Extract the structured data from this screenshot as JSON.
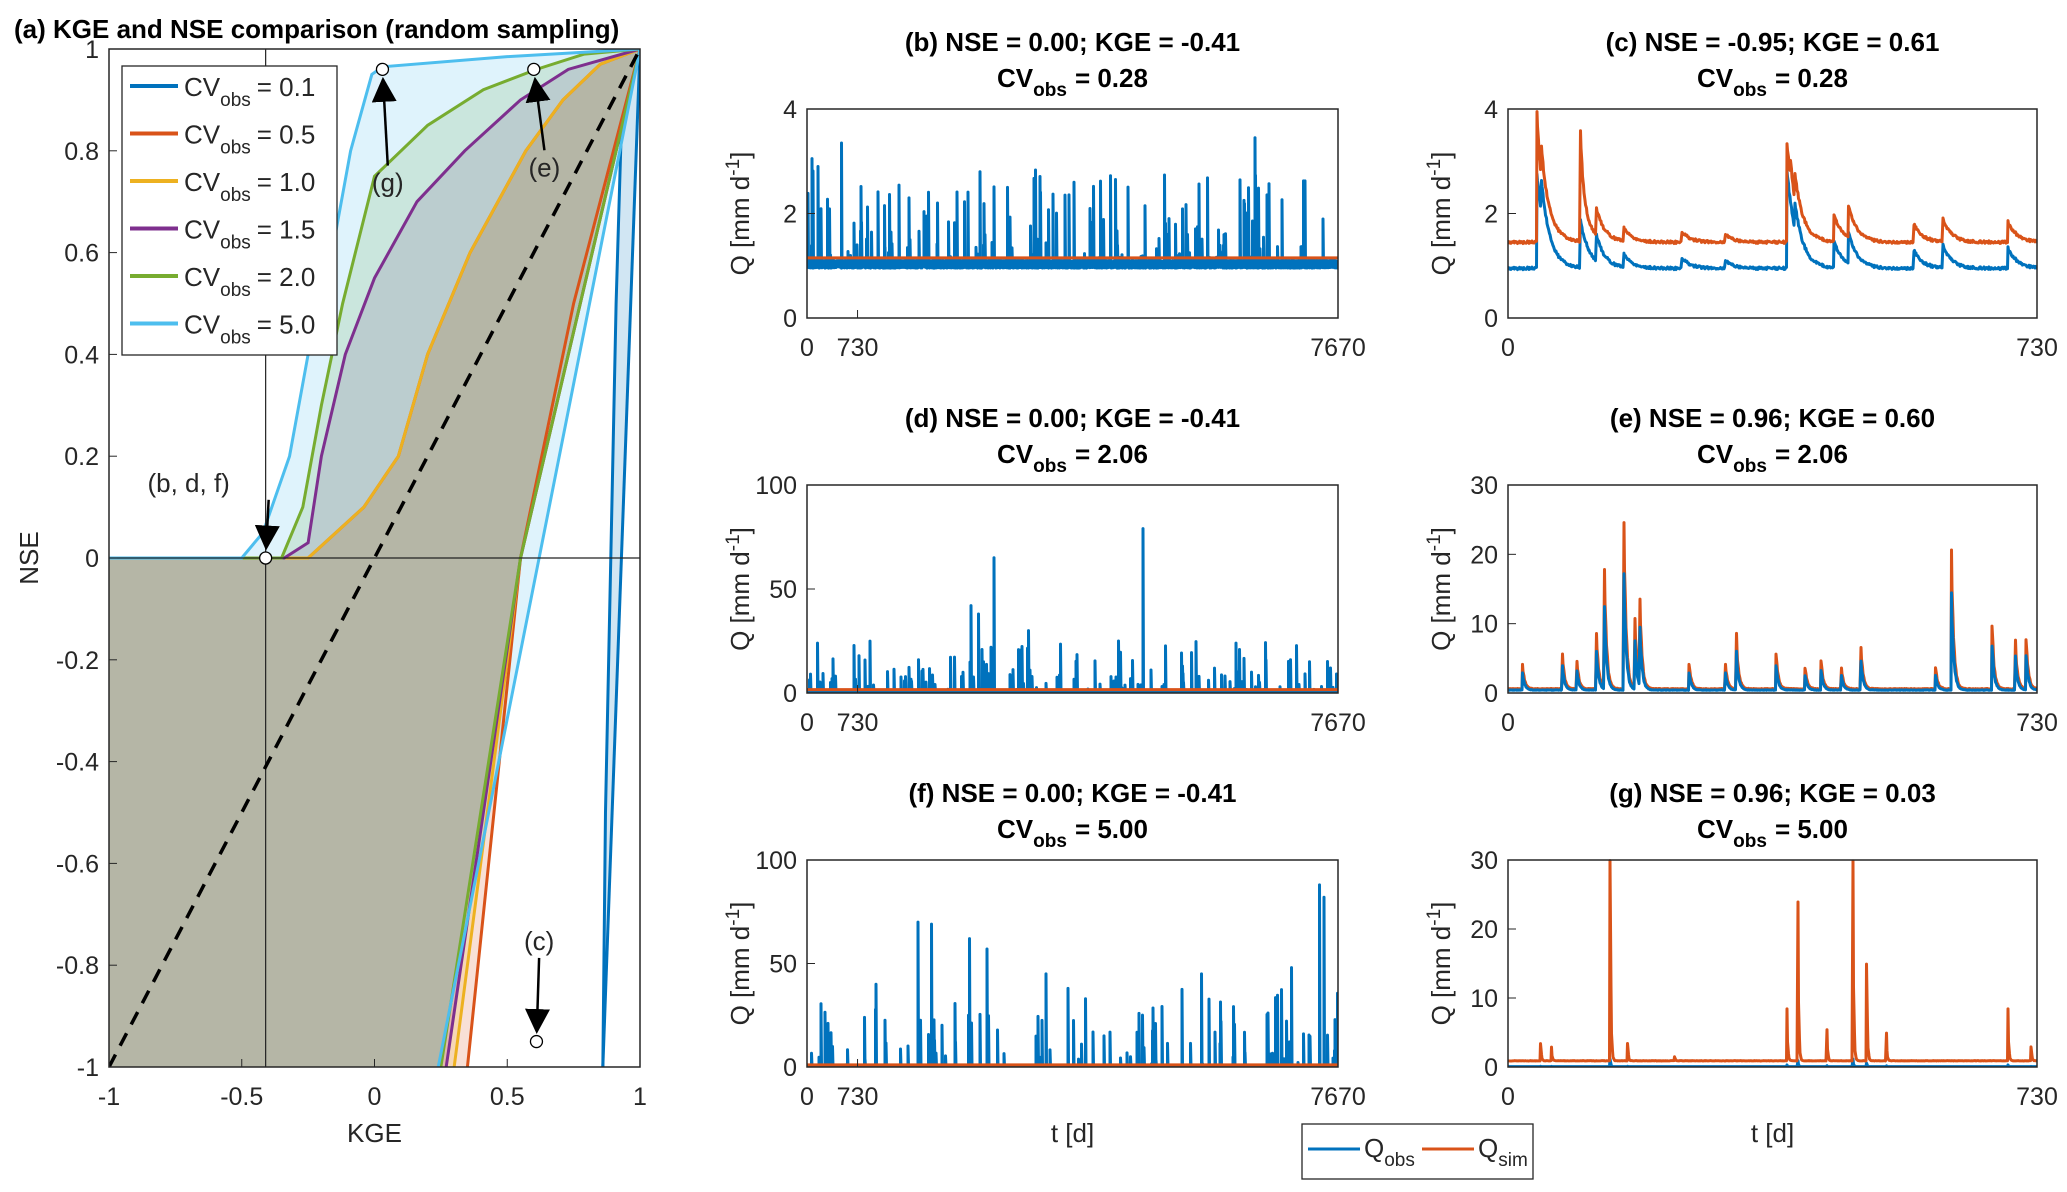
{
  "colors": {
    "blue": "#0072BD",
    "orange": "#D95319",
    "yellow": "#EDB120",
    "purple": "#7E2F8E",
    "green": "#77AC30",
    "lightblue": "#4DBEEE"
  },
  "legend_bottom": {
    "items": [
      {
        "base": "Q",
        "sub": "obs",
        "color": "#0072BD"
      },
      {
        "base": "Q",
        "sub": "sim",
        "color": "#D95319"
      }
    ]
  },
  "chart_data": [
    {
      "id": "a",
      "type": "line",
      "title": "(a) KGE and NSE comparison (random sampling)",
      "xlabel": "KGE",
      "ylabel": "NSE",
      "xlim": [
        -1,
        1
      ],
      "ylim": [
        -1,
        1
      ],
      "xticks": [
        -1,
        -0.5,
        0,
        0.5,
        1
      ],
      "xtick_labels": [
        "-1",
        "-0.5",
        "0",
        "0.5",
        "1"
      ],
      "yticks": [
        -1,
        -0.8,
        -0.6,
        -0.4,
        -0.2,
        0,
        0.2,
        0.4,
        0.6,
        0.8,
        1
      ],
      "ytick_labels": [
        "-1",
        "-0.8",
        "-0.6",
        "-0.4",
        "-0.2",
        "0",
        "0.2",
        "0.4",
        "0.6",
        "0.8",
        "1"
      ],
      "legend": {
        "placement": "top-left",
        "entries": [
          {
            "base": "CV",
            "sub": "obs",
            "value": "= 0.1",
            "color": "#0072BD"
          },
          {
            "base": "CV",
            "sub": "obs",
            "value": "= 0.5",
            "color": "#D95319"
          },
          {
            "base": "CV",
            "sub": "obs",
            "value": "= 1.0",
            "color": "#EDB120"
          },
          {
            "base": "CV",
            "sub": "obs",
            "value": "= 1.5",
            "color": "#7E2F8E"
          },
          {
            "base": "CV",
            "sub": "obs",
            "value": "= 2.0",
            "color": "#77AC30"
          },
          {
            "base": "CV",
            "sub": "obs",
            "value": "= 5.0",
            "color": "#4DBEEE"
          }
        ]
      },
      "series": [
        {
          "cv": 0.1,
          "color": "#0072BD",
          "upper": [
            [
              0.86,
              -1
            ],
            [
              0.87,
              -0.5
            ],
            [
              0.89,
              0
            ],
            [
              0.91,
              0.5
            ],
            [
              0.93,
              0.85
            ],
            [
              1,
              1
            ]
          ],
          "lower": [
            [
              0.86,
              -1
            ],
            [
              1,
              1
            ]
          ]
        },
        {
          "cv": 0.5,
          "color": "#D95319",
          "upper": [
            [
              -1,
              0
            ],
            [
              -0.25,
              0
            ],
            [
              -0.04,
              0.1
            ],
            [
              0.09,
              0.2
            ],
            [
              0.2,
              0.4
            ],
            [
              0.36,
              0.6
            ],
            [
              0.57,
              0.8
            ],
            [
              0.71,
              0.9
            ],
            [
              0.85,
              0.97
            ],
            [
              1,
              1
            ]
          ],
          "lower": [
            [
              0.35,
              -1
            ],
            [
              0.45,
              -0.5
            ],
            [
              0.55,
              0
            ],
            [
              0.75,
              0.5
            ],
            [
              1,
              1
            ]
          ]
        },
        {
          "cv": 1.0,
          "color": "#EDB120",
          "upper": [
            [
              -1,
              0
            ],
            [
              -0.25,
              0
            ],
            [
              -0.04,
              0.1
            ],
            [
              0.09,
              0.2
            ],
            [
              0.2,
              0.4
            ],
            [
              0.36,
              0.6
            ],
            [
              0.57,
              0.8
            ],
            [
              0.71,
              0.9
            ],
            [
              0.85,
              0.97
            ],
            [
              1,
              1
            ]
          ],
          "lower": [
            [
              0.3,
              -1
            ],
            [
              0.55,
              0
            ],
            [
              1,
              1
            ]
          ]
        },
        {
          "cv": 1.5,
          "color": "#7E2F8E",
          "upper": [
            [
              -1,
              0
            ],
            [
              -0.34,
              0
            ],
            [
              -0.25,
              0.03
            ],
            [
              -0.2,
              0.2
            ],
            [
              -0.11,
              0.4
            ],
            [
              0,
              0.55
            ],
            [
              0.16,
              0.7
            ],
            [
              0.34,
              0.8
            ],
            [
              0.55,
              0.9
            ],
            [
              0.73,
              0.96
            ],
            [
              1,
              1
            ]
          ],
          "lower": [
            [
              0.27,
              -1
            ],
            [
              0.55,
              0
            ],
            [
              1,
              1
            ]
          ]
        },
        {
          "cv": 2.0,
          "color": "#77AC30",
          "upper": [
            [
              -1,
              0
            ],
            [
              -0.35,
              0
            ],
            [
              -0.27,
              0.1
            ],
            [
              -0.2,
              0.3
            ],
            [
              -0.12,
              0.5
            ],
            [
              0,
              0.75
            ],
            [
              0.2,
              0.85
            ],
            [
              0.41,
              0.92
            ],
            [
              0.61,
              0.96
            ],
            [
              0.79,
              0.99
            ],
            [
              1,
              1
            ]
          ],
          "lower": [
            [
              0.25,
              -1
            ],
            [
              0.55,
              0
            ],
            [
              1,
              1
            ]
          ]
        },
        {
          "cv": 5.0,
          "color": "#4DBEEE",
          "upper": [
            [
              -1,
              0
            ],
            [
              -0.5,
              0
            ],
            [
              -0.42,
              0.05
            ],
            [
              -0.32,
              0.2
            ],
            [
              -0.25,
              0.4
            ],
            [
              -0.16,
              0.6
            ],
            [
              -0.09,
              0.8
            ],
            [
              -0.01,
              0.95
            ],
            [
              0.03,
              0.965
            ],
            [
              0.5,
              0.985
            ],
            [
              1,
              1
            ]
          ],
          "lower": [
            [
              0.24,
              -1
            ],
            [
              0.62,
              0
            ],
            [
              1,
              1
            ]
          ]
        }
      ],
      "reference_line": {
        "label": "1:1",
        "points": [
          [
            -1,
            -1
          ],
          [
            1,
            1
          ]
        ]
      },
      "markers": [
        {
          "kge": -0.41,
          "nse": 0.0,
          "label": "(b, d, f)",
          "tx": -0.7,
          "ty": 0.13
        },
        {
          "kge": 0.03,
          "nse": 0.96,
          "label": "(g)",
          "tx": 0.05,
          "ty": 0.72
        },
        {
          "kge": 0.6,
          "nse": 0.96,
          "label": "(e)",
          "tx": 0.64,
          "ty": 0.75
        },
        {
          "kge": 0.61,
          "nse": -0.95,
          "label": "(c)",
          "tx": 0.62,
          "ty": -0.77
        }
      ]
    },
    {
      "id": "b",
      "type": "line",
      "title": "(b) NSE = 0.00; KGE = -0.41",
      "cv_value": "= 0.28",
      "xlim": [
        0,
        7670
      ],
      "xticks": [
        0,
        730,
        7670
      ],
      "ylim": [
        0,
        4
      ],
      "yticks": [
        0,
        2,
        4
      ],
      "ylabel": "Q [mm d",
      "ylabel_sup": "-1",
      "ylabel_end": "]",
      "xlabel": "",
      "obs": {
        "kind": "random",
        "n": 7670,
        "base": 1.0,
        "noise": 0.15,
        "spike_prob": 0.03,
        "spike_max": 1.8,
        "seed": 3,
        "peaks": [
          [
            70,
            3.05
          ],
          [
            160,
            2.9
          ],
          [
            500,
            3.35
          ],
          [
            6470,
            3.45
          ],
          [
            2500,
            2.8
          ]
        ]
      },
      "sim": {
        "kind": "const",
        "value": 1.15
      }
    },
    {
      "id": "c",
      "type": "line",
      "title": "(c) NSE = -0.95; KGE = 0.61",
      "cv_value": "= 0.28",
      "xlim": [
        0,
        730
      ],
      "xticks": [
        0,
        730
      ],
      "ylim": [
        0,
        4
      ],
      "yticks": [
        0,
        2,
        4
      ],
      "ylabel": "Q [mm d",
      "ylabel_sup": "-1",
      "ylabel_end": "]",
      "xlabel": "",
      "obs": {
        "kind": "events",
        "base": 0.95,
        "noise": 0.05,
        "tau": 12,
        "seed": 5,
        "events": [
          [
            40,
            1.8
          ],
          [
            46,
            0.6
          ],
          [
            100,
            0.9
          ],
          [
            122,
            0.5
          ],
          [
            160,
            0.25
          ],
          [
            240,
            0.2
          ],
          [
            300,
            0.15
          ],
          [
            385,
            1.9
          ],
          [
            396,
            0.5
          ],
          [
            450,
            0.5
          ],
          [
            470,
            0.6
          ],
          [
            560,
            0.35
          ],
          [
            600,
            0.45
          ],
          [
            690,
            0.4
          ]
        ]
      },
      "sim": {
        "kind": "transform",
        "scale": 1.0,
        "offset": 0.5,
        "extra": [
          [
            40,
            0.7
          ],
          [
            100,
            1.2
          ],
          [
            390,
            0.3
          ]
        ]
      }
    },
    {
      "id": "d",
      "type": "line",
      "title": "(d) NSE = 0.00; KGE = -0.41",
      "cv_value": "= 2.06",
      "xlim": [
        0,
        7670
      ],
      "xticks": [
        0,
        730,
        7670
      ],
      "ylim": [
        0,
        100
      ],
      "yticks": [
        0,
        50,
        100
      ],
      "ylabel": "Q [mm d",
      "ylabel_sup": "-1",
      "ylabel_end": "]",
      "xlabel": "",
      "obs": {
        "kind": "random",
        "n": 7670,
        "base": 0.3,
        "noise": 0.3,
        "spike_prob": 0.02,
        "spike_max": 25,
        "seed": 7,
        "peaks": [
          [
            2700,
            65
          ],
          [
            4850,
            79
          ],
          [
            2370,
            42
          ],
          [
            2480,
            38
          ],
          [
            3200,
            30
          ],
          [
            4500,
            25
          ],
          [
            6200,
            24
          ],
          [
            150,
            24
          ]
        ]
      },
      "sim": {
        "kind": "const",
        "value": 1.6
      }
    },
    {
      "id": "e",
      "type": "line",
      "title": "(e) NSE = 0.96; KGE = 0.60",
      "cv_value": "= 2.06",
      "xlim": [
        0,
        730
      ],
      "xticks": [
        0,
        730
      ],
      "ylim": [
        0,
        30
      ],
      "yticks": [
        0,
        10,
        20,
        30
      ],
      "ylabel": "Q [mm d",
      "ylabel_sup": "-1",
      "ylabel_end": "]",
      "xlabel": "",
      "sim": {
        "kind": "events",
        "base": 0.6,
        "noise": 0.1,
        "tau": 3,
        "seed": 9,
        "events": [
          [
            20,
            3.5
          ],
          [
            75,
            5
          ],
          [
            95,
            4
          ],
          [
            122,
            8
          ],
          [
            133,
            17
          ],
          [
            160,
            24
          ],
          [
            175,
            10
          ],
          [
            182,
            12
          ],
          [
            250,
            3.5
          ],
          [
            300,
            3.5
          ],
          [
            315,
            8
          ],
          [
            370,
            5
          ],
          [
            410,
            3
          ],
          [
            432,
            4
          ],
          [
            460,
            3
          ],
          [
            487,
            6
          ],
          [
            590,
            3
          ],
          [
            612,
            20
          ],
          [
            668,
            9
          ],
          [
            700,
            7
          ],
          [
            715,
            7
          ]
        ]
      },
      "obs": {
        "kind": "transform",
        "scale": 0.7,
        "offset": 0
      }
    },
    {
      "id": "f",
      "type": "line",
      "title": "(f) NSE = 0.00; KGE = -0.41",
      "cv_value": "= 5.00",
      "xlim": [
        0,
        7670
      ],
      "xticks": [
        0,
        730,
        7670
      ],
      "ylim": [
        0,
        100
      ],
      "yticks": [
        0,
        50,
        100
      ],
      "ylabel": "Q [mm d",
      "ylabel_sup": "-1",
      "ylabel_end": "]",
      "xlabel": "t [d]",
      "obs": {
        "kind": "random",
        "n": 7670,
        "base": 0.2,
        "noise": 0.2,
        "spike_prob": 0.015,
        "spike_max": 40,
        "seed": 11,
        "peaks": [
          [
            1600,
            70
          ],
          [
            1800,
            69
          ],
          [
            2600,
            57
          ],
          [
            2350,
            62
          ],
          [
            7400,
            88
          ],
          [
            7470,
            82
          ],
          [
            1000,
            40
          ],
          [
            3450,
            45
          ],
          [
            5700,
            45
          ],
          [
            7000,
            48
          ]
        ]
      },
      "sim": {
        "kind": "const",
        "value": 1.0
      }
    },
    {
      "id": "g",
      "type": "line",
      "title": "(g) NSE = 0.96; KGE = 0.03",
      "cv_value": "= 5.00",
      "xlim": [
        0,
        730
      ],
      "xticks": [
        0,
        730
      ],
      "ylim": [
        0,
        30
      ],
      "yticks": [
        0,
        10,
        20,
        30
      ],
      "ylabel": "Q [mm d",
      "ylabel_sup": "-1",
      "ylabel_end": "]",
      "xlabel": "t [d]",
      "sim": {
        "kind": "events",
        "base": 0.9,
        "noise": 0.05,
        "tau": 1,
        "seed": 13,
        "events": [
          [
            45,
            2.5
          ],
          [
            60,
            2
          ],
          [
            141,
            29
          ],
          [
            165,
            2.5
          ],
          [
            230,
            0.6
          ],
          [
            385,
            7.5
          ],
          [
            400,
            23
          ],
          [
            440,
            4.5
          ],
          [
            476,
            29
          ],
          [
            495,
            14
          ],
          [
            522,
            4
          ],
          [
            690,
            7.5
          ],
          [
            722,
            2
          ]
        ]
      },
      "obs": {
        "kind": "transform",
        "scale": 0.04,
        "offset": -0.8
      }
    }
  ]
}
